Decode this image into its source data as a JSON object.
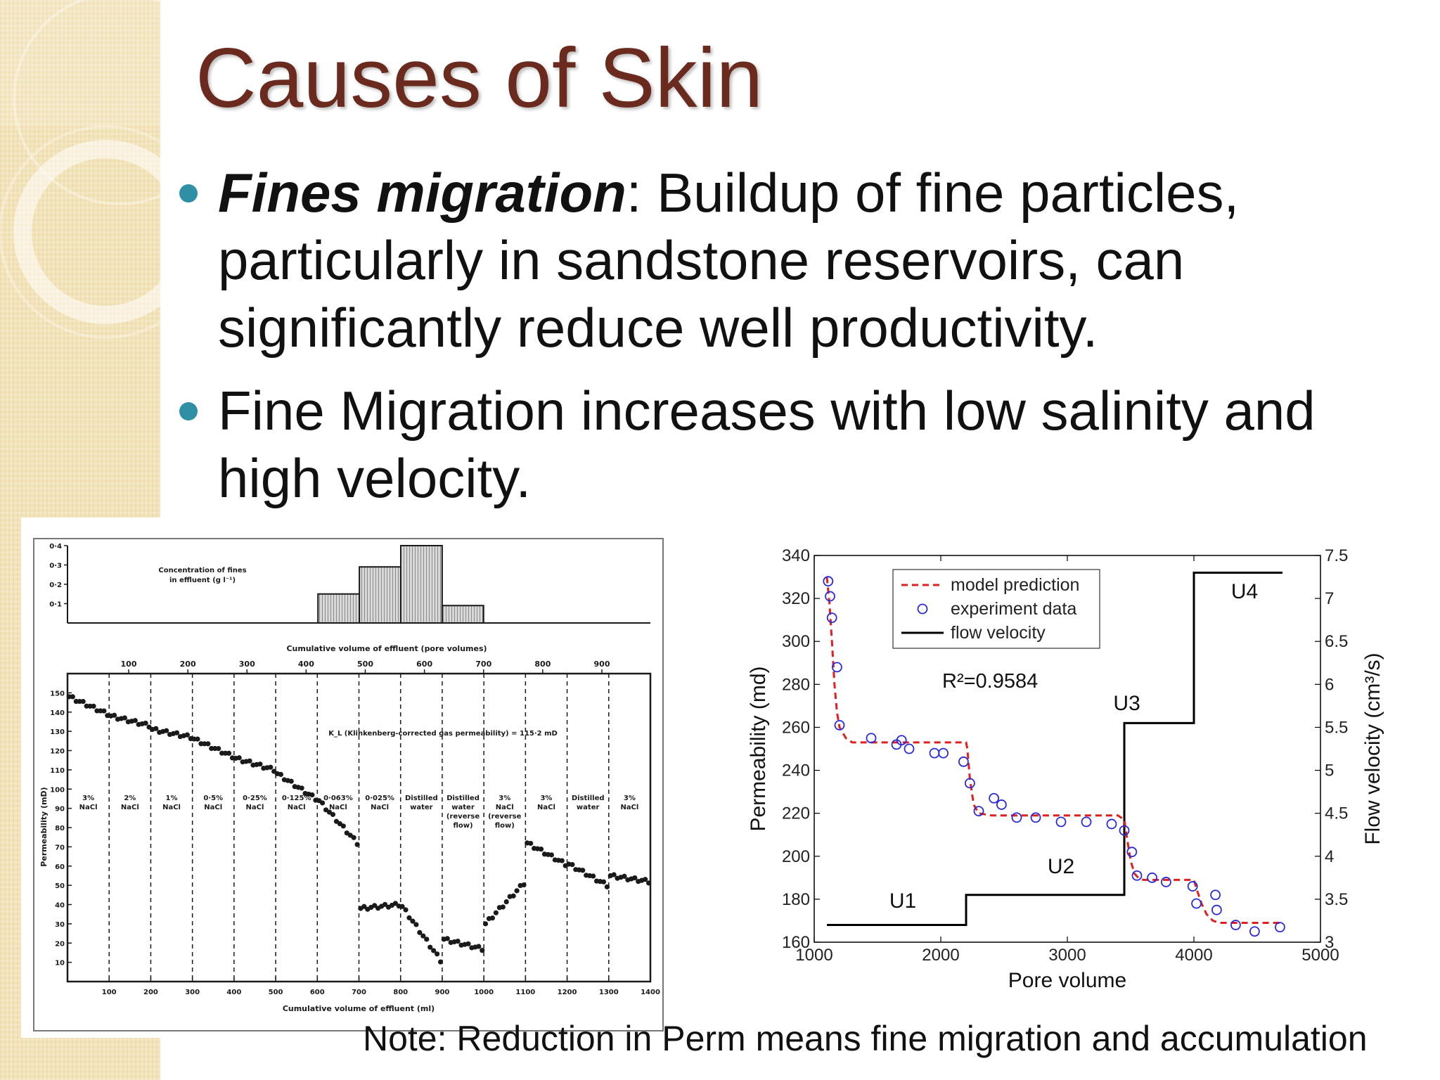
{
  "slide": {
    "title": "Causes of Skin",
    "bullet1_bold": "Fines migration",
    "bullet1_rest": ": Buildup of fine particles, particularly in sandstone reservoirs, can significantly reduce well productivity.",
    "bullet2": "Fine Migration increases with low salinity and high velocity.",
    "note": "Note: Reduction in Perm means fine migration and accumulation",
    "colors": {
      "title": "#6b2a1e",
      "bullet": "#2f8fa5",
      "band": "#f3e3b8"
    }
  },
  "chart_data": [
    {
      "type": "bar",
      "title": "",
      "top_panel": {
        "label_line1": "Concentration of fines",
        "label_line2": "in effluent",
        "label_unit": "(g l⁻¹)",
        "y_ticks": [
          "0·4",
          "0·3",
          "0·2",
          "0·1"
        ],
        "y_max": 0.4,
        "bins": [
          {
            "x0": 420,
            "x1": 490,
            "value": 0.15
          },
          {
            "x0": 490,
            "x1": 560,
            "value": 0.29
          },
          {
            "x0": 560,
            "x1": 630,
            "value": 0.4
          },
          {
            "x0": 630,
            "x1": 700,
            "value": 0.09
          }
        ],
        "top_axis_label": "Cumulative volume of effluent (pore volumes)",
        "top_ticks": [
          "100",
          "200",
          "300",
          "400",
          "500",
          "600",
          "700",
          "800",
          "900"
        ]
      },
      "main_panel": {
        "ylabel": "Permeability (mD)",
        "xlabel": "Cumulative volume of effluent (ml)",
        "y_ticks": [
          "150",
          "140",
          "130",
          "120",
          "110",
          "100",
          "90",
          "80",
          "70",
          "60",
          "50",
          "40",
          "30",
          "20",
          "10"
        ],
        "x_ticks": [
          "100",
          "200",
          "300",
          "400",
          "500",
          "600",
          "700",
          "800",
          "900",
          "1000",
          "1100",
          "1200",
          "1300",
          "1400"
        ],
        "annotation": "K_L (Klinkenberg-corrected gas permeability) = 115·2 mD",
        "stage_labels": [
          {
            "line1": "3%",
            "line2": "NaCl"
          },
          {
            "line1": "2%",
            "line2": "NaCl"
          },
          {
            "line1": "1%",
            "line2": "NaCl"
          },
          {
            "line1": "0·5%",
            "line2": "NaCl"
          },
          {
            "line1": "0·25%",
            "line2": "NaCl"
          },
          {
            "line1": "0·125%",
            "line2": "NaCl"
          },
          {
            "line1": "0·063%",
            "line2": "NaCl"
          },
          {
            "line1": "0·025%",
            "line2": "NaCl"
          },
          {
            "line1": "Distilled",
            "line2": "water"
          },
          {
            "line1": "Distilled",
            "line2": "water",
            "line3": "(reverse",
            "line4": "flow)"
          },
          {
            "line1": "3%",
            "line2": "NaCl",
            "line3": "(reverse",
            "line4": "flow)"
          },
          {
            "line1": "3%",
            "line2": "NaCl"
          },
          {
            "line1": "Distilled",
            "line2": "water"
          },
          {
            "line1": "3%",
            "line2": "NaCl"
          }
        ],
        "segments": [
          {
            "x0": 0,
            "x1": 100,
            "y0": 148,
            "y1": 139
          },
          {
            "x0": 100,
            "x1": 200,
            "y0": 138,
            "y1": 133
          },
          {
            "x0": 200,
            "x1": 300,
            "y0": 131,
            "y1": 127
          },
          {
            "x0": 300,
            "x1": 400,
            "y0": 126,
            "y1": 117
          },
          {
            "x0": 400,
            "x1": 500,
            "y0": 116,
            "y1": 110
          },
          {
            "x0": 500,
            "x1": 600,
            "y0": 108,
            "y1": 95
          },
          {
            "x0": 600,
            "x1": 700,
            "y0": 94,
            "y1": 72
          },
          {
            "x0": 700,
            "x1": 800,
            "y0": 38,
            "y1": 40
          },
          {
            "x0": 800,
            "x1": 900,
            "y0": 39,
            "y1": 11
          },
          {
            "x0": 900,
            "x1": 1000,
            "y0": 22,
            "y1": 17
          },
          {
            "x0": 1000,
            "x1": 1100,
            "y0": 30,
            "y1": 51
          },
          {
            "x0": 1100,
            "x1": 1200,
            "y0": 72,
            "y1": 61
          },
          {
            "x0": 1200,
            "x1": 1300,
            "y0": 61,
            "y1": 50
          },
          {
            "x0": 1300,
            "x1": 1400,
            "y0": 55,
            "y1": 52
          }
        ]
      }
    },
    {
      "type": "line",
      "title": "",
      "xlabel": "Pore volume",
      "ylabel": "Permeability (md)",
      "y2label": "Flow velocity (cm³/s)",
      "xlim": [
        1000,
        5000
      ],
      "ylim": [
        160,
        340
      ],
      "y2lim": [
        3,
        7.5
      ],
      "x_ticks": [
        1000,
        2000,
        3000,
        4000,
        5000
      ],
      "y_ticks": [
        160,
        180,
        200,
        220,
        240,
        260,
        280,
        300,
        320,
        340
      ],
      "y2_ticks": [
        "3",
        "3.5",
        "4",
        "4.5",
        "5",
        "5.5",
        "6",
        "6.5",
        "7",
        "7.5"
      ],
      "legend": {
        "position": "top-center",
        "entries": [
          "model prediction",
          "experiment data",
          "flow velocity"
        ]
      },
      "annotation": "R²=0.9584",
      "stage_labels": [
        {
          "text": "U1",
          "x": 1700,
          "y2": 3.4
        },
        {
          "text": "U2",
          "x": 2950,
          "y2": 3.8
        },
        {
          "text": "U3",
          "x": 3470,
          "y2": 5.7
        },
        {
          "text": "U4",
          "x": 4400,
          "y2": 7.0
        }
      ],
      "series": [
        {
          "name": "model prediction",
          "color": "#e02020",
          "x": [
            1100,
            1120,
            1140,
            1160,
            1180,
            1200,
            1250,
            1300,
            1400,
            1600,
            1800,
            2000,
            2200,
            2210,
            2230,
            2260,
            2300,
            2400,
            2600,
            2800,
            3000,
            3200,
            3400,
            3450,
            3470,
            3500,
            3530,
            3560,
            3600,
            3700,
            3800,
            3900,
            4000,
            4020,
            4060,
            4100,
            4150,
            4200,
            4300,
            4400,
            4500,
            4600,
            4700
          ],
          "y": [
            330,
            318,
            300,
            280,
            267,
            260,
            255,
            253,
            253,
            253,
            253,
            253,
            253,
            250,
            236,
            224,
            220,
            219,
            219,
            219,
            219,
            219,
            219,
            217,
            209,
            198,
            192,
            190,
            189,
            189,
            189,
            189,
            189,
            185,
            178,
            173,
            170,
            169,
            169,
            169,
            169,
            169,
            169
          ]
        },
        {
          "name": "experiment data",
          "color": "#2a2ad8",
          "x": [
            1110,
            1125,
            1140,
            1180,
            1200,
            1450,
            1650,
            1690,
            1750,
            1950,
            2020,
            2180,
            2230,
            2300,
            2420,
            2480,
            2600,
            2750,
            2950,
            3150,
            3350,
            3450,
            3510,
            3550,
            3670,
            3780,
            3990,
            4020,
            4170,
            4180,
            4330,
            4480,
            4680
          ],
          "y": [
            328,
            321,
            311,
            288,
            261,
            255,
            252,
            254,
            250,
            248,
            248,
            244,
            234,
            221,
            227,
            224,
            218,
            218,
            216,
            216,
            215,
            212,
            202,
            191,
            190,
            188,
            186,
            178,
            182,
            175,
            168,
            165,
            167
          ]
        },
        {
          "name": "flow velocity",
          "color": "#000000",
          "axis": "y2",
          "x": [
            1100,
            2200,
            2200,
            3450,
            3450,
            4000,
            4000,
            4700
          ],
          "y": [
            3.2,
            3.2,
            3.55,
            3.55,
            5.55,
            5.55,
            7.3,
            7.3
          ]
        }
      ]
    }
  ]
}
